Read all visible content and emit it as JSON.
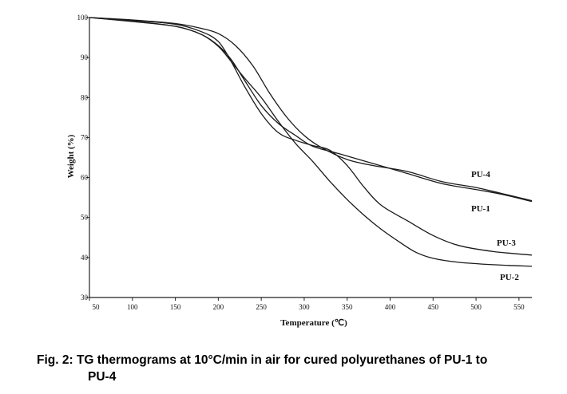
{
  "caption": {
    "line1": "Fig. 2: TG thermograms at 10°C/min in air for cured polyurethanes of PU-1 to",
    "line2": "PU-4"
  },
  "chart_data": {
    "type": "line",
    "title": "",
    "xlabel": "Temperature (℃)",
    "ylabel": "Weight (%)",
    "xlim": [
      50,
      565
    ],
    "ylim": [
      30,
      100
    ],
    "xticks": [
      50,
      100,
      150,
      200,
      250,
      300,
      350,
      400,
      450,
      500,
      550
    ],
    "yticks": [
      30,
      40,
      50,
      60,
      70,
      80,
      90,
      100
    ],
    "grid": false,
    "legend": "inline labels at right",
    "series": [
      {
        "name": "PU-1",
        "x": [
          50,
          100,
          150,
          180,
          200,
          215,
          230,
          250,
          270,
          290,
          310,
          340,
          380,
          420,
          460,
          500,
          530,
          565
        ],
        "y": [
          100,
          99.1,
          97.8,
          95.8,
          93,
          89.5,
          84.5,
          78,
          73.5,
          70.5,
          67.8,
          66,
          63.5,
          61,
          58.5,
          57,
          55.8,
          54
        ]
      },
      {
        "name": "PU-2",
        "x": [
          50,
          100,
          150,
          180,
          200,
          215,
          230,
          250,
          270,
          290,
          310,
          330,
          350,
          370,
          390,
          410,
          430,
          450,
          480,
          520,
          565
        ],
        "y": [
          100,
          99,
          97.8,
          95.8,
          92.8,
          89,
          85,
          80,
          74,
          68.5,
          64,
          59,
          54.5,
          50.5,
          47,
          44,
          41.3,
          39.8,
          38.8,
          38.2,
          37.8
        ]
      },
      {
        "name": "PU-3",
        "x": [
          50,
          100,
          150,
          180,
          200,
          215,
          230,
          250,
          270,
          290,
          310,
          330,
          350,
          370,
          390,
          420,
          450,
          480,
          520,
          565
        ],
        "y": [
          100,
          99.3,
          98.3,
          96.5,
          94,
          89,
          83,
          76,
          71.2,
          69.3,
          68,
          66.8,
          63,
          57.5,
          53,
          49.2,
          45.5,
          43,
          41.5,
          40.6
        ]
      },
      {
        "name": "PU-4",
        "x": [
          50,
          100,
          150,
          180,
          200,
          220,
          240,
          260,
          280,
          300,
          320,
          350,
          380,
          420,
          460,
          500,
          530,
          565
        ],
        "y": [
          100,
          99.4,
          98.5,
          97.3,
          96,
          93,
          88,
          81,
          75,
          70.5,
          67.5,
          64.5,
          63,
          61.5,
          59,
          57.5,
          56,
          54.2
        ]
      }
    ]
  }
}
